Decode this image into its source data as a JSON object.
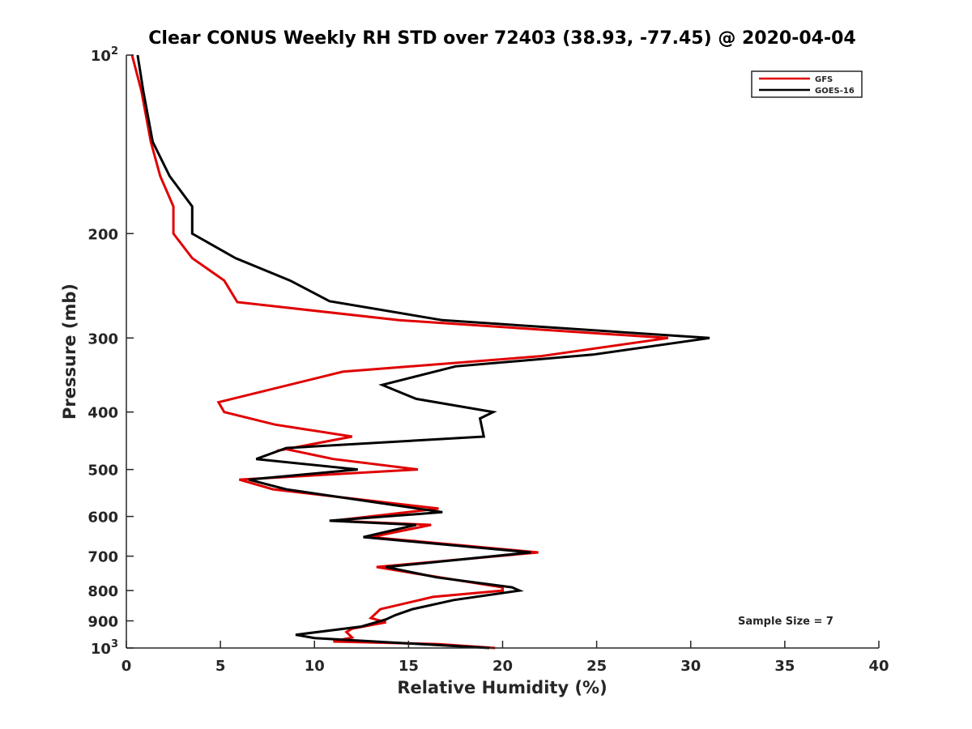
{
  "chart_data": {
    "type": "line",
    "title": "Clear CONUS Weekly RH STD over 72403 (38.93, -77.45) @ 2020-04-04",
    "xlabel": "Relative Humidity (%)",
    "ylabel": "Pressure (mb)",
    "xlim": [
      0,
      40
    ],
    "ylim": [
      100,
      1000
    ],
    "y_scale": "log",
    "y_reversed": true,
    "x_ticks": [
      0,
      5,
      10,
      15,
      20,
      25,
      30,
      35,
      40
    ],
    "x_tick_labels": [
      "0",
      "5",
      "10",
      "15",
      "20",
      "25",
      "30",
      "35",
      "40"
    ],
    "y_ticks": [
      100,
      200,
      300,
      400,
      500,
      600,
      700,
      800,
      900,
      1000
    ],
    "y_tick_labels": [
      {
        "base": "10",
        "exp": "2"
      },
      {
        "base": "200",
        "exp": ""
      },
      {
        "base": "300",
        "exp": ""
      },
      {
        "base": "400",
        "exp": ""
      },
      {
        "base": "500",
        "exp": ""
      },
      {
        "base": "600",
        "exp": ""
      },
      {
        "base": "700",
        "exp": ""
      },
      {
        "base": "800",
        "exp": ""
      },
      {
        "base": "900",
        "exp": ""
      },
      {
        "base": "10",
        "exp": "3"
      }
    ],
    "grid": false,
    "legend_position": "top-right",
    "annotation": "Sample Size = 7",
    "series": [
      {
        "name": "GFS",
        "color": "#e00000",
        "points": [
          [
            0.3,
            100
          ],
          [
            0.8,
            115
          ],
          [
            1.3,
            140
          ],
          [
            1.8,
            160
          ],
          [
            2.5,
            180
          ],
          [
            2.5,
            200
          ],
          [
            3.5,
            220
          ],
          [
            5.2,
            240
          ],
          [
            5.9,
            261
          ],
          [
            14.5,
            280
          ],
          [
            28.8,
            300
          ],
          [
            22.0,
            322
          ],
          [
            11.5,
            342
          ],
          [
            4.9,
            385
          ],
          [
            5.2,
            400
          ],
          [
            7.9,
            420
          ],
          [
            12.0,
            440
          ],
          [
            8.0,
            465
          ],
          [
            8.5,
            462
          ],
          [
            11.0,
            480
          ],
          [
            15.5,
            500
          ],
          [
            6.0,
            520
          ],
          [
            7.8,
            540
          ],
          [
            16.6,
            582
          ],
          [
            11.0,
            610
          ],
          [
            16.2,
            620
          ],
          [
            13.0,
            650
          ],
          [
            21.9,
            690
          ],
          [
            13.3,
            730
          ],
          [
            15.5,
            750
          ],
          [
            20.0,
            790
          ],
          [
            20.0,
            800
          ],
          [
            16.3,
            820
          ],
          [
            13.5,
            860
          ],
          [
            13.0,
            890
          ],
          [
            13.8,
            905
          ],
          [
            12.0,
            928
          ],
          [
            11.7,
            940
          ],
          [
            12.0,
            960
          ],
          [
            11.0,
            975
          ],
          [
            16.6,
            985
          ],
          [
            19.6,
            1000
          ]
        ]
      },
      {
        "name": "GOES-16",
        "color": "#000000",
        "points": [
          [
            0.6,
            100
          ],
          [
            0.9,
            115
          ],
          [
            1.4,
            140
          ],
          [
            2.3,
            160
          ],
          [
            3.5,
            180
          ],
          [
            3.5,
            200
          ],
          [
            5.8,
            220
          ],
          [
            8.7,
            240
          ],
          [
            10.8,
            260
          ],
          [
            16.8,
            280
          ],
          [
            31.0,
            300
          ],
          [
            24.8,
            320
          ],
          [
            17.5,
            335
          ],
          [
            13.6,
            360
          ],
          [
            15.4,
            380
          ],
          [
            19.5,
            400
          ],
          [
            18.8,
            410
          ],
          [
            19.0,
            440
          ],
          [
            8.5,
            460
          ],
          [
            6.9,
            480
          ],
          [
            12.3,
            500
          ],
          [
            6.5,
            520
          ],
          [
            8.5,
            540
          ],
          [
            16.8,
            590
          ],
          [
            10.8,
            610
          ],
          [
            15.4,
            620
          ],
          [
            12.6,
            650
          ],
          [
            21.5,
            690
          ],
          [
            13.8,
            730
          ],
          [
            16.5,
            760
          ],
          [
            20.5,
            790
          ],
          [
            20.9,
            800
          ],
          [
            17.4,
            830
          ],
          [
            15.2,
            860
          ],
          [
            14.3,
            880
          ],
          [
            13.8,
            895
          ],
          [
            12.5,
            920
          ],
          [
            9.0,
            950
          ],
          [
            10.0,
            962
          ],
          [
            19.3,
            1000
          ]
        ]
      }
    ]
  }
}
